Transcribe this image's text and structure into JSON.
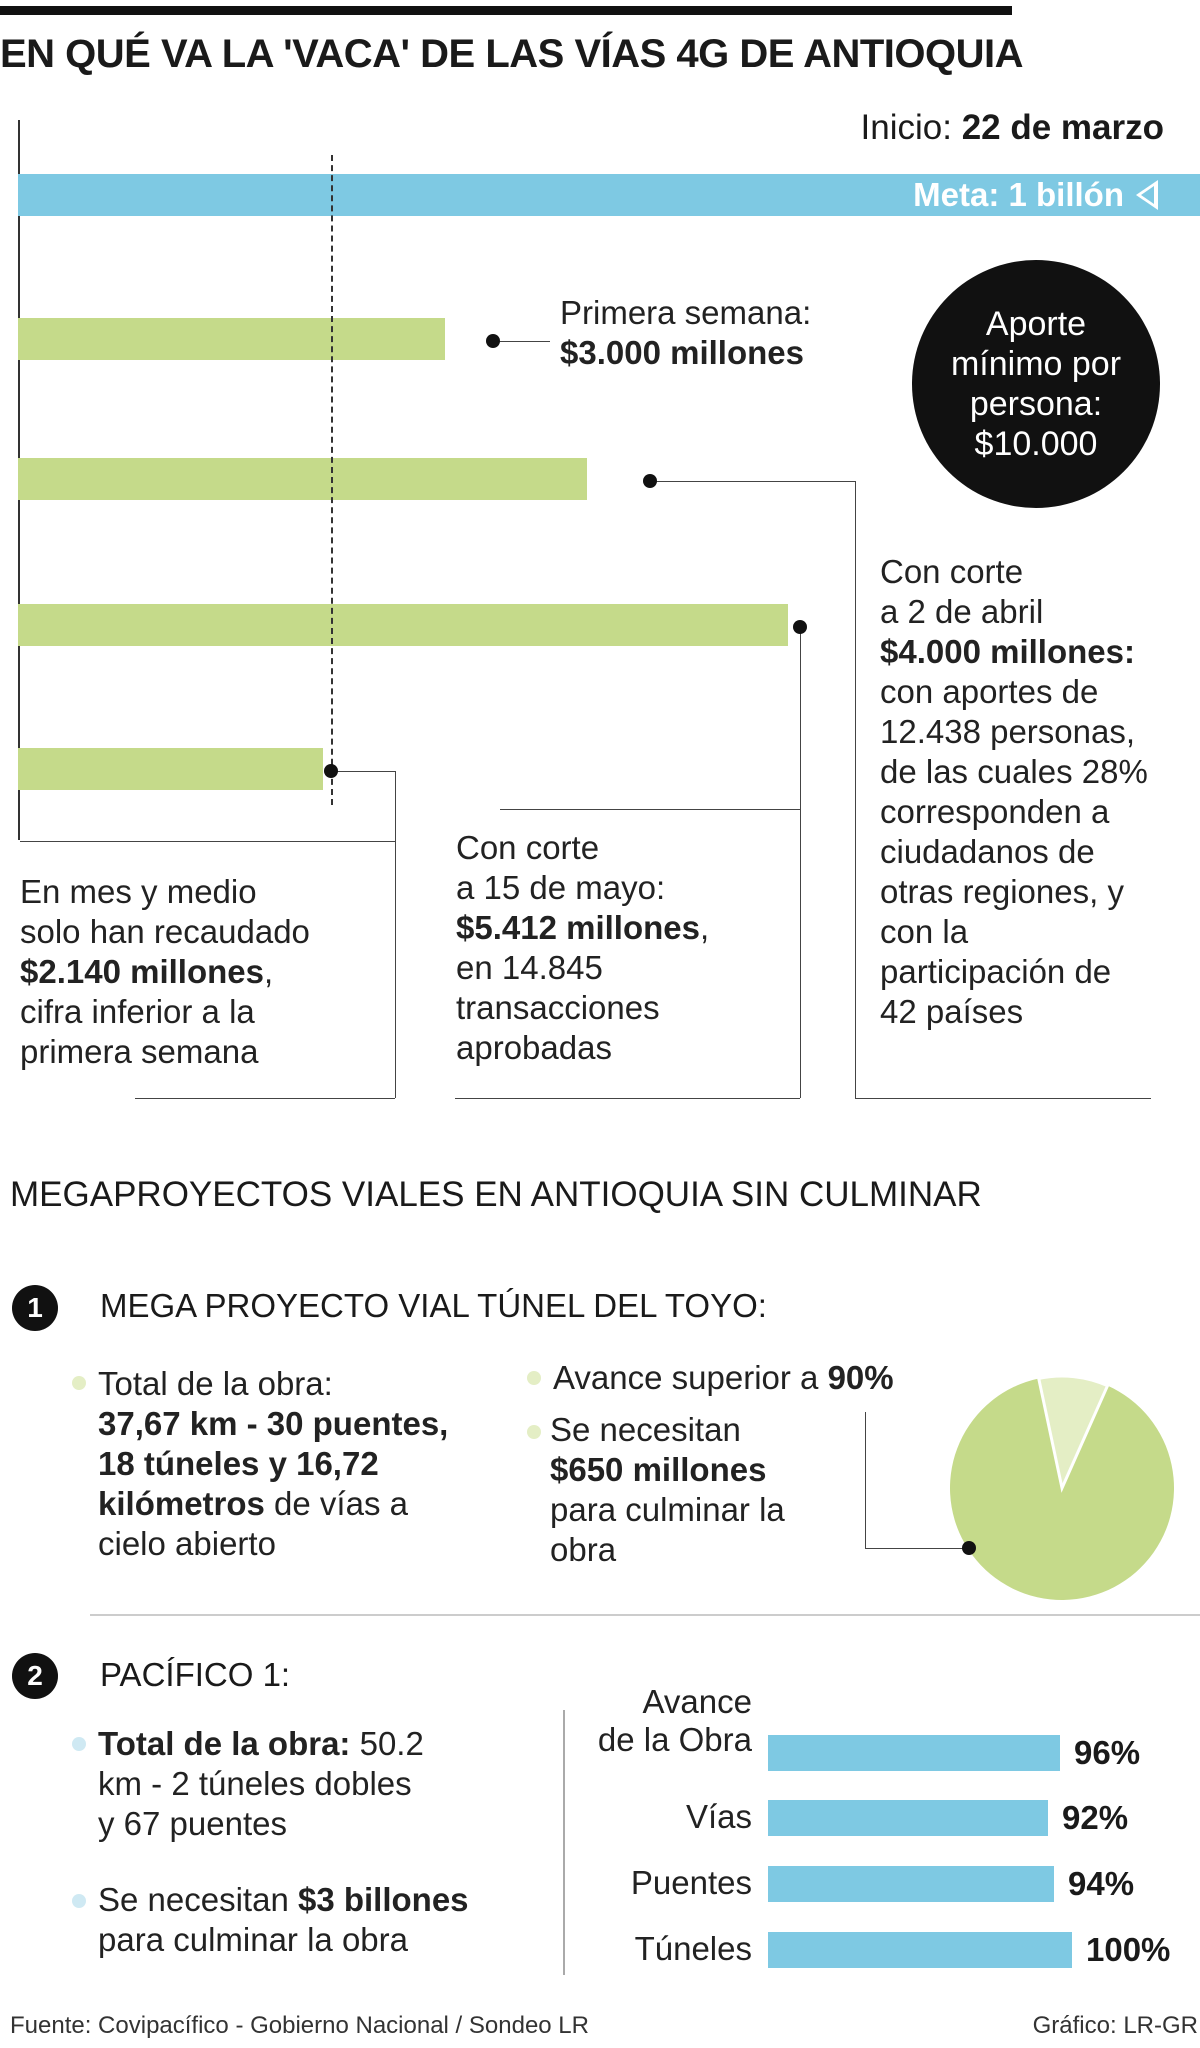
{
  "title": "EN QUÉ VA LA 'VACA' DE LAS VÍAS 4G DE ANTIOQUIA",
  "inicio": {
    "label": "Inicio:",
    "value": "22 de marzo"
  },
  "goal": "Meta: 1 billón",
  "circle": {
    "line1": "Aporte",
    "line2": "mínimo por",
    "line3": "persona:",
    "line4": "$10.000"
  },
  "annotations": {
    "primera": {
      "line1": "Primera semana:",
      "value": "$3.000 millones"
    },
    "abril": {
      "line1": "Con corte",
      "line2": "a 2 de abril",
      "value": "$4.000 millones:",
      "line4": "con aportes de",
      "line5": "12.438 personas,",
      "line6": "de las cuales 28%",
      "line7": "corresponden a",
      "line8": "ciudadanos de",
      "line9": "otras regiones, y",
      "line10": "con la",
      "line11": "participación de",
      "line12": "42 países"
    },
    "mayo": {
      "line1": "Con corte",
      "line2": "a 15 de mayo:",
      "value": "$5.412 millones",
      "value_suffix": ",",
      "line4": "en 14.845",
      "line5": "transacciones",
      "line6": "aprobadas"
    },
    "actual": {
      "line1": "En mes y medio",
      "line2": "solo han recaudado",
      "value": "$2.140 millones",
      "value_suffix": ",",
      "line4": "cifra inferior a la",
      "line5": "primera semana"
    }
  },
  "section2_title": "MEGAPROYECTOS VIALES EN ANTIOQUIA SIN CULMINAR",
  "project1": {
    "number": "1",
    "name": "MEGA PROYECTO VIAL TÚNEL DEL TOYO:",
    "total_label": "Total de la obra:",
    "total_bold1": "37,67 km - 30 puentes,",
    "total_bold2": "18 túneles y 16,72",
    "total_bold3": "kilómetros",
    "total_rest3": " de vías a",
    "total_rest4": "cielo abierto",
    "avance_label": "Avance superior a ",
    "avance_value": "90%",
    "need_line1": "Se necesitan",
    "need_value": "$650 millones",
    "need_line3": "para culminar la",
    "need_line4": "obra"
  },
  "project2": {
    "number": "2",
    "name": "PACÍFICO 1:",
    "total_label": "Total de la obra:",
    "total_value": " 50.2",
    "total_line2": "km - 2 túneles dobles",
    "total_line3": "y 67 puentes",
    "need_label": "Se necesitan ",
    "need_value": "$3 billones",
    "need_line2": "para culminar la obra"
  },
  "footer": {
    "source": "Fuente: Covipacífico - Gobierno Nacional / Sondeo LR",
    "credit": "Gráfico: LR-GR"
  },
  "colors": {
    "blue": "#7ec9e3",
    "green": "#c5da8a",
    "pie_light": "#e4eec5",
    "black": "#111111"
  },
  "chart_data": [
    {
      "type": "bar",
      "orientation": "horizontal",
      "goal": 1000000,
      "unit": "millones de pesos",
      "categories": [
        "Primera semana",
        "Con corte a 2 de abril",
        "Con corte a 15 de mayo",
        "En mes y medio"
      ],
      "values": [
        3000,
        4000,
        5412,
        2140
      ]
    },
    {
      "type": "pie",
      "categories": [
        "Avance",
        "Restante"
      ],
      "values": [
        90,
        10
      ]
    },
    {
      "type": "bar",
      "orientation": "horizontal",
      "categories": [
        "Avance de la Obra",
        "Vías",
        "Puentes",
        "Túneles"
      ],
      "values": [
        96,
        92,
        94,
        100
      ],
      "labels": [
        "96%",
        "92%",
        "94%",
        "100%"
      ],
      "xlim": [
        0,
        100
      ]
    }
  ]
}
